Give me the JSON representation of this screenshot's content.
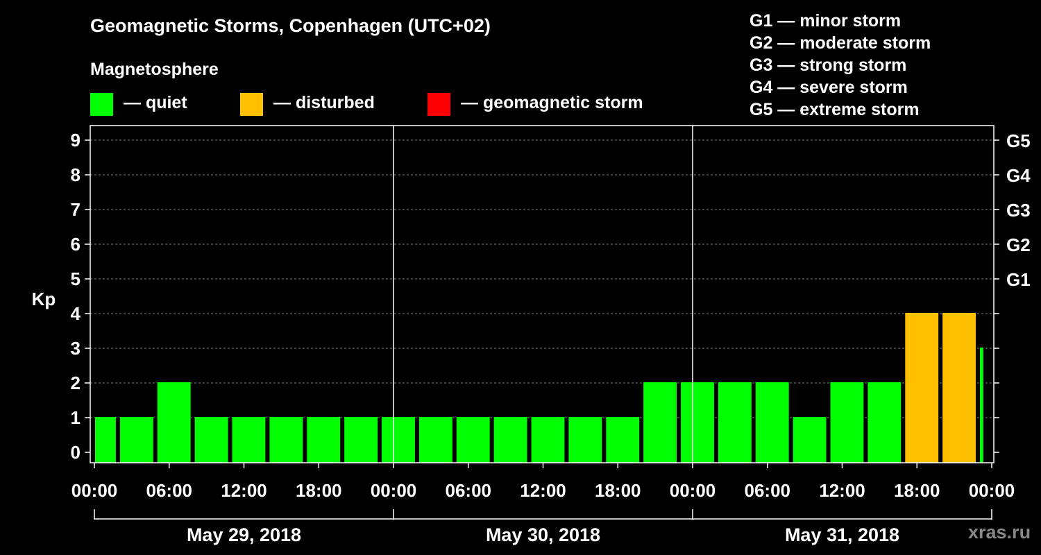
{
  "title": "Geomagnetic Storms, Copenhagen (UTC+02)",
  "subtitle": "Magnetosphere",
  "legend": [
    {
      "label": "— quiet",
      "color": "#00ff00"
    },
    {
      "label": "— disturbed",
      "color": "#ffc000"
    },
    {
      "label": "— geomagnetic storm",
      "color": "#ff0000"
    }
  ],
  "storm_scale": [
    "G1 — minor storm",
    "G2 — moderate storm",
    "G3 — strong storm",
    "G4 — severe storm",
    "G5 — extreme storm"
  ],
  "watermark": "xras.ru",
  "colors": {
    "background": "#000000",
    "axis": "#ffffff",
    "grid": "#808080",
    "quiet": "#00ff00",
    "disturbed": "#ffc000",
    "storm": "#ff0000"
  },
  "chart_data": {
    "type": "bar",
    "ylabel": "Kp",
    "ylim": [
      0,
      9
    ],
    "y_ticks": [
      "0",
      "1",
      "2",
      "3",
      "4",
      "5",
      "6",
      "7",
      "8",
      "9"
    ],
    "right_ticks": [
      {
        "kp": 5,
        "label": "G1"
      },
      {
        "kp": 6,
        "label": "G2"
      },
      {
        "kp": 7,
        "label": "G3"
      },
      {
        "kp": 8,
        "label": "G4"
      },
      {
        "kp": 9,
        "label": "G5"
      }
    ],
    "x_range_hours": [
      0,
      72
    ],
    "x_tick_hours": [
      0,
      6,
      12,
      18,
      24,
      30,
      36,
      42,
      48,
      54,
      60,
      66,
      72
    ],
    "x_tick_labels": [
      "00:00",
      "06:00",
      "12:00",
      "18:00",
      "00:00",
      "06:00",
      "12:00",
      "18:00",
      "00:00",
      "06:00",
      "12:00",
      "18:00",
      "00:00"
    ],
    "day_separators_hours": [
      24,
      48
    ],
    "days": [
      {
        "label": "May 29, 2018",
        "start": 0,
        "end": 24
      },
      {
        "label": "May 30, 2018",
        "start": 24,
        "end": 48
      },
      {
        "label": "May 31, 2018",
        "start": 48,
        "end": 72
      }
    ],
    "bars": [
      {
        "start": 0,
        "end": 2,
        "kp": 1,
        "status": "quiet"
      },
      {
        "start": 2,
        "end": 5,
        "kp": 1,
        "status": "quiet"
      },
      {
        "start": 5,
        "end": 8,
        "kp": 2,
        "status": "quiet"
      },
      {
        "start": 8,
        "end": 11,
        "kp": 1,
        "status": "quiet"
      },
      {
        "start": 11,
        "end": 14,
        "kp": 1,
        "status": "quiet"
      },
      {
        "start": 14,
        "end": 17,
        "kp": 1,
        "status": "quiet"
      },
      {
        "start": 17,
        "end": 20,
        "kp": 1,
        "status": "quiet"
      },
      {
        "start": 20,
        "end": 23,
        "kp": 1,
        "status": "quiet"
      },
      {
        "start": 23,
        "end": 26,
        "kp": 1,
        "status": "quiet"
      },
      {
        "start": 26,
        "end": 29,
        "kp": 1,
        "status": "quiet"
      },
      {
        "start": 29,
        "end": 32,
        "kp": 1,
        "status": "quiet"
      },
      {
        "start": 32,
        "end": 35,
        "kp": 1,
        "status": "quiet"
      },
      {
        "start": 35,
        "end": 38,
        "kp": 1,
        "status": "quiet"
      },
      {
        "start": 38,
        "end": 41,
        "kp": 1,
        "status": "quiet"
      },
      {
        "start": 41,
        "end": 44,
        "kp": 1,
        "status": "quiet"
      },
      {
        "start": 44,
        "end": 47,
        "kp": 2,
        "status": "quiet"
      },
      {
        "start": 47,
        "end": 50,
        "kp": 2,
        "status": "quiet"
      },
      {
        "start": 50,
        "end": 53,
        "kp": 2,
        "status": "quiet"
      },
      {
        "start": 53,
        "end": 56,
        "kp": 2,
        "status": "quiet"
      },
      {
        "start": 56,
        "end": 59,
        "kp": 1,
        "status": "quiet"
      },
      {
        "start": 59,
        "end": 62,
        "kp": 2,
        "status": "quiet"
      },
      {
        "start": 62,
        "end": 65,
        "kp": 2,
        "status": "quiet"
      },
      {
        "start": 65,
        "end": 68,
        "kp": 4,
        "status": "disturbed"
      },
      {
        "start": 68,
        "end": 71,
        "kp": 4,
        "status": "disturbed"
      },
      {
        "start": 71,
        "end": 71.6,
        "kp": 3,
        "status": "quiet"
      }
    ]
  }
}
